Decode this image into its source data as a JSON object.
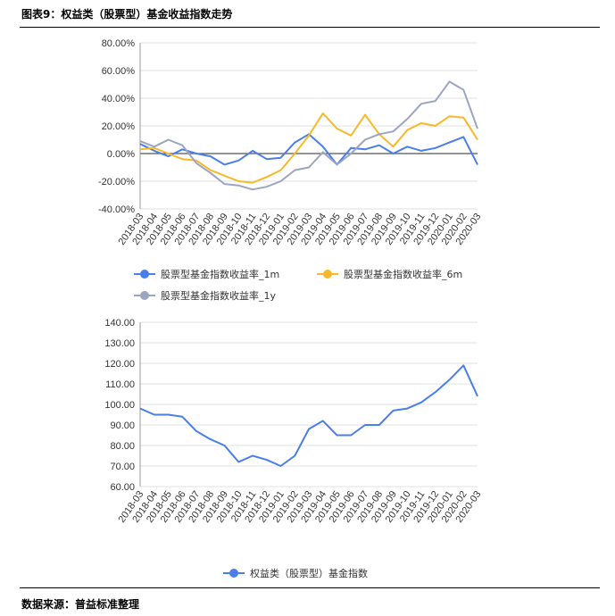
{
  "header": {
    "title": "图表9：权益类（股票型）基金收益指数走势"
  },
  "footer": {
    "source": "数据来源：普益标准整理"
  },
  "x_dates": [
    "2018-03",
    "2018-04",
    "2018-05",
    "2018-06",
    "2018-07",
    "2018-08",
    "2018-09",
    "2018-10",
    "2018-11",
    "2018-12",
    "2019-01",
    "2019-02",
    "2019-03",
    "2019-04",
    "2019-05",
    "2019-06",
    "2019-07",
    "2019-08",
    "2019-09",
    "2019-10",
    "2019-11",
    "2019-12",
    "2020-01",
    "2020-02",
    "2020-03"
  ],
  "x_tick_labels": [
    "2018-03",
    "2018-04",
    "2018-05",
    "2018-06",
    "2018-07",
    "2018-08",
    "2018-09",
    "2018-10",
    "2018-11",
    "2018-12",
    "2019-01",
    "2019-02",
    "2019-03",
    "2019-04",
    "2019-05",
    "2019-06",
    "2019-07",
    "2019-08",
    "2019-09",
    "2019-10",
    "2019-11",
    "2019-12",
    "2020-01",
    "2020-02",
    "2020-03"
  ],
  "colors": {
    "blue": "#4a7ee8",
    "orange": "#f7b928",
    "gray": "#9aa5c1",
    "grid": "#e2e2e2",
    "zero": "#555555"
  },
  "chart_data": [
    {
      "type": "line",
      "xlabel": "",
      "ylabel": "",
      "ylim": [
        -40,
        80
      ],
      "y_ticks": [
        "80.00%",
        "60.00%",
        "40.00%",
        "20.00%",
        "0.00%",
        "-20.00%",
        "-40.00%"
      ],
      "grid": true,
      "legend_position": "bottom",
      "series": [
        {
          "name": "股票型基金指数收益率_1m",
          "color": "#4a7ee8",
          "values": [
            7,
            2,
            -2,
            3,
            0,
            -2,
            -8,
            -5,
            2,
            -4,
            -3,
            8,
            14,
            5,
            -8,
            4,
            3,
            6,
            0,
            5,
            2,
            4,
            8,
            12,
            -8
          ]
        },
        {
          "name": "股票型基金指数收益率_6m",
          "color": "#f7b928",
          "values": [
            3,
            4,
            0,
            -4,
            -5,
            -12,
            -16,
            -20,
            -21,
            -17,
            -12,
            0,
            13,
            29,
            18,
            13,
            28,
            14,
            5,
            17,
            22,
            20,
            27,
            26,
            10
          ]
        },
        {
          "name": "股票型基金指数收益率_1y",
          "color": "#9aa5c1",
          "values": [
            9,
            5,
            10,
            6,
            -7,
            -14,
            -22,
            -23,
            -26,
            -24,
            -20,
            -12,
            -10,
            1,
            -8,
            0,
            10,
            14,
            16,
            25,
            36,
            38,
            52,
            46,
            18
          ]
        }
      ]
    },
    {
      "type": "line",
      "xlabel": "",
      "ylabel": "",
      "ylim": [
        60,
        140
      ],
      "y_ticks": [
        "140.00",
        "130.00",
        "120.00",
        "110.00",
        "100.00",
        "90.00",
        "80.00",
        "70.00",
        "60.00"
      ],
      "grid": true,
      "legend_position": "bottom",
      "series": [
        {
          "name": "权益类（股票型）基金指数",
          "color": "#4a7ee8",
          "values": [
            98,
            95,
            95,
            94,
            87,
            83,
            80,
            72,
            75,
            73,
            70,
            75,
            88,
            92,
            85,
            85,
            90,
            90,
            97,
            98,
            101,
            106,
            112,
            119,
            104
          ]
        }
      ]
    }
  ]
}
